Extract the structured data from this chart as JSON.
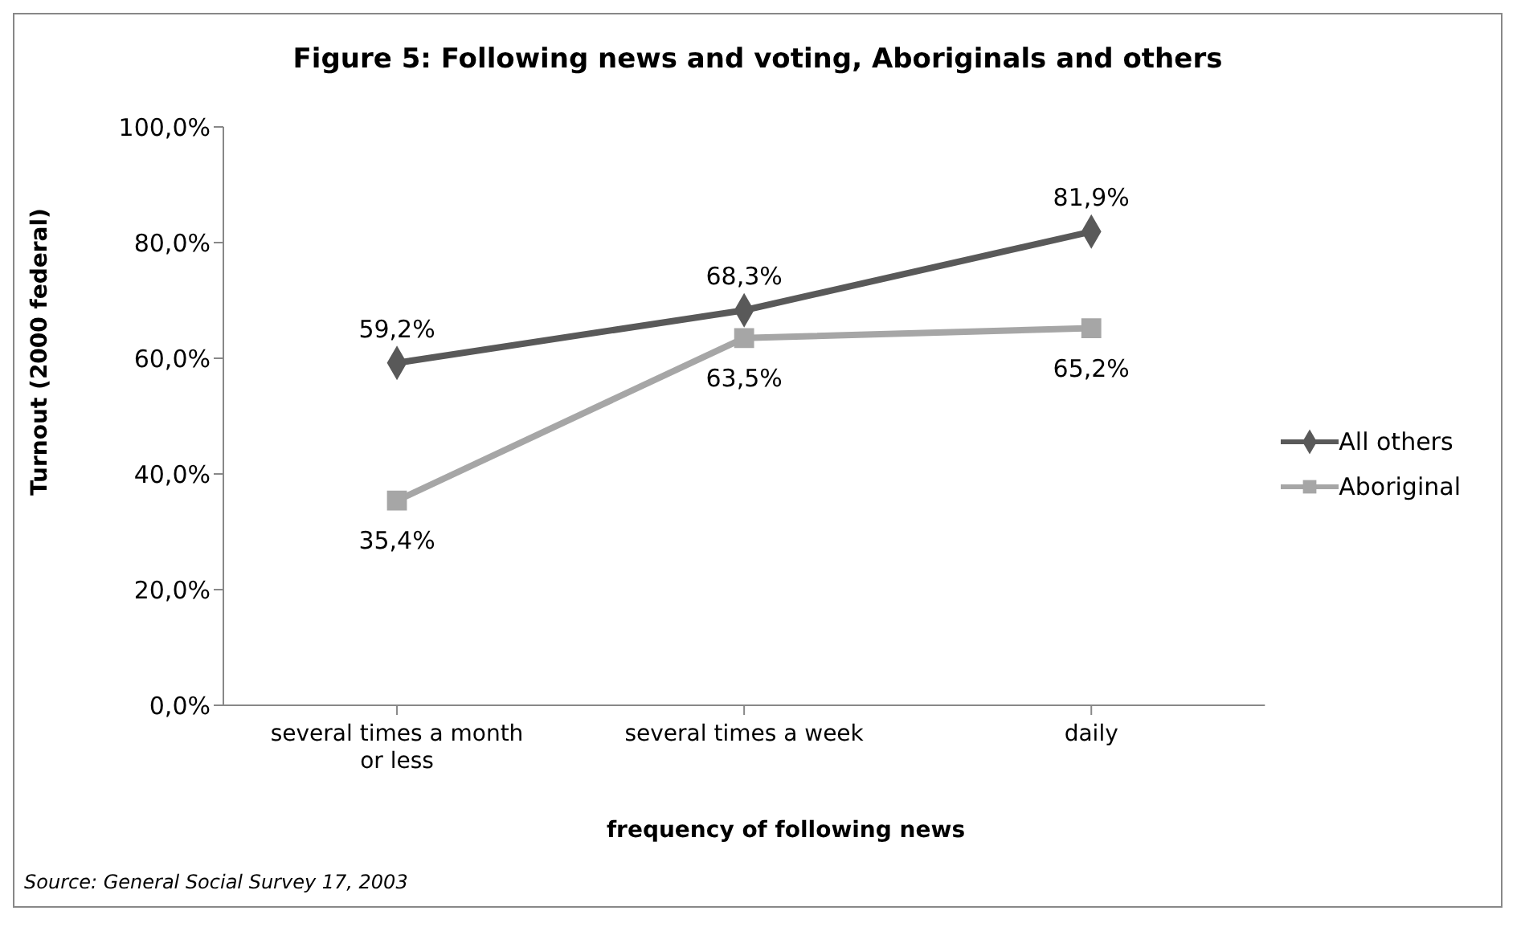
{
  "chart_data": {
    "type": "line",
    "title": "Figure 5: Following news and voting, Aboriginals and others",
    "xlabel": "frequency of following news",
    "ylabel": "Turnout (2000 federal)",
    "categories": [
      "several times a month or less",
      "several times a week",
      "daily"
    ],
    "series": [
      {
        "name": "All others",
        "color": "#595959",
        "marker": "diamond",
        "values": [
          59.2,
          68.3,
          81.9
        ],
        "value_labels": [
          "59,2%",
          "68,3%",
          "81,9%"
        ]
      },
      {
        "name": "Aboriginal",
        "color": "#a6a6a6",
        "marker": "square",
        "values": [
          35.4,
          63.5,
          65.2
        ],
        "value_labels": [
          "35,4%",
          "63,5%",
          "65,2%"
        ]
      }
    ],
    "ylim": [
      0,
      100
    ],
    "yticks": [
      {
        "value": 0,
        "label": "0,0%"
      },
      {
        "value": 20,
        "label": "20,0%"
      },
      {
        "value": 40,
        "label": "40,0%"
      },
      {
        "value": 60,
        "label": "60,0%"
      },
      {
        "value": 80,
        "label": "80,0%"
      },
      {
        "value": 100,
        "label": "100,0%"
      }
    ],
    "grid": false,
    "legend": "right",
    "line_style": "solid",
    "annotations": [
      "Source: General Social Survey 17, 2003"
    ]
  }
}
